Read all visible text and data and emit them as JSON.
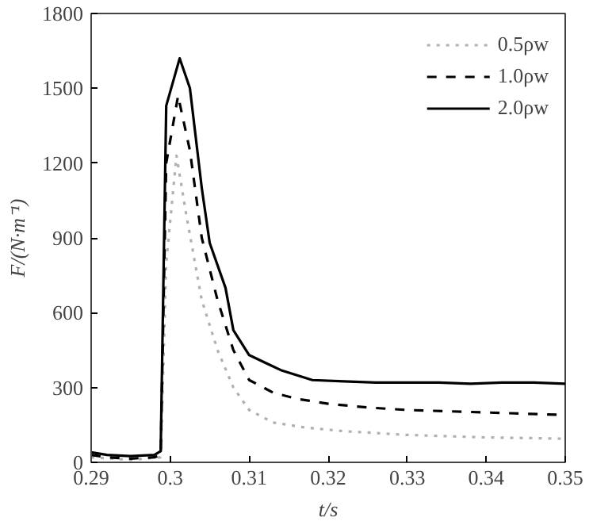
{
  "chart_data": {
    "type": "line",
    "xlabel": "t/s",
    "ylabel": "F/(N·m⁻¹)",
    "xlim": [
      0.29,
      0.35
    ],
    "ylim": [
      0,
      1800
    ],
    "xticks": [
      0.29,
      0.3,
      0.31,
      0.32,
      0.33,
      0.34,
      0.35
    ],
    "yticks": [
      0,
      300,
      600,
      900,
      1200,
      1500,
      1800
    ],
    "grid": false,
    "legend": "top right",
    "series": [
      {
        "name": "0.5ρw",
        "color": "#b0b0b0",
        "line_style": "dotted",
        "x": [
          0.29,
          0.295,
          0.2988,
          0.2995,
          0.3008,
          0.302,
          0.304,
          0.306,
          0.308,
          0.31,
          0.313,
          0.317,
          0.322,
          0.33,
          0.34,
          0.35
        ],
        "values": [
          20,
          10,
          20,
          800,
          1230,
          1000,
          650,
          450,
          300,
          210,
          160,
          140,
          125,
          110,
          100,
          95
        ]
      },
      {
        "name": "1.0ρw",
        "color": "#000000",
        "line_style": "dashed",
        "x": [
          0.29,
          0.292,
          0.295,
          0.298,
          0.2988,
          0.2995,
          0.301,
          0.3025,
          0.304,
          0.306,
          0.308,
          0.31,
          0.313,
          0.316,
          0.32,
          0.325,
          0.33,
          0.34,
          0.35
        ],
        "values": [
          30,
          20,
          15,
          20,
          30,
          1200,
          1470,
          1250,
          900,
          650,
          450,
          330,
          280,
          255,
          235,
          220,
          210,
          200,
          190
        ]
      },
      {
        "name": "2.0ρw",
        "color": "#000000",
        "line_style": "solid",
        "x": [
          0.29,
          0.292,
          0.295,
          0.298,
          0.2988,
          0.2995,
          0.3012,
          0.3025,
          0.304,
          0.305,
          0.307,
          0.308,
          0.31,
          0.312,
          0.314,
          0.316,
          0.318,
          0.322,
          0.326,
          0.33,
          0.334,
          0.338,
          0.342,
          0.346,
          0.35
        ],
        "values": [
          40,
          30,
          25,
          30,
          45,
          1430,
          1620,
          1500,
          1100,
          880,
          700,
          530,
          430,
          400,
          370,
          350,
          330,
          325,
          320,
          320,
          320,
          315,
          320,
          320,
          315
        ]
      }
    ]
  }
}
